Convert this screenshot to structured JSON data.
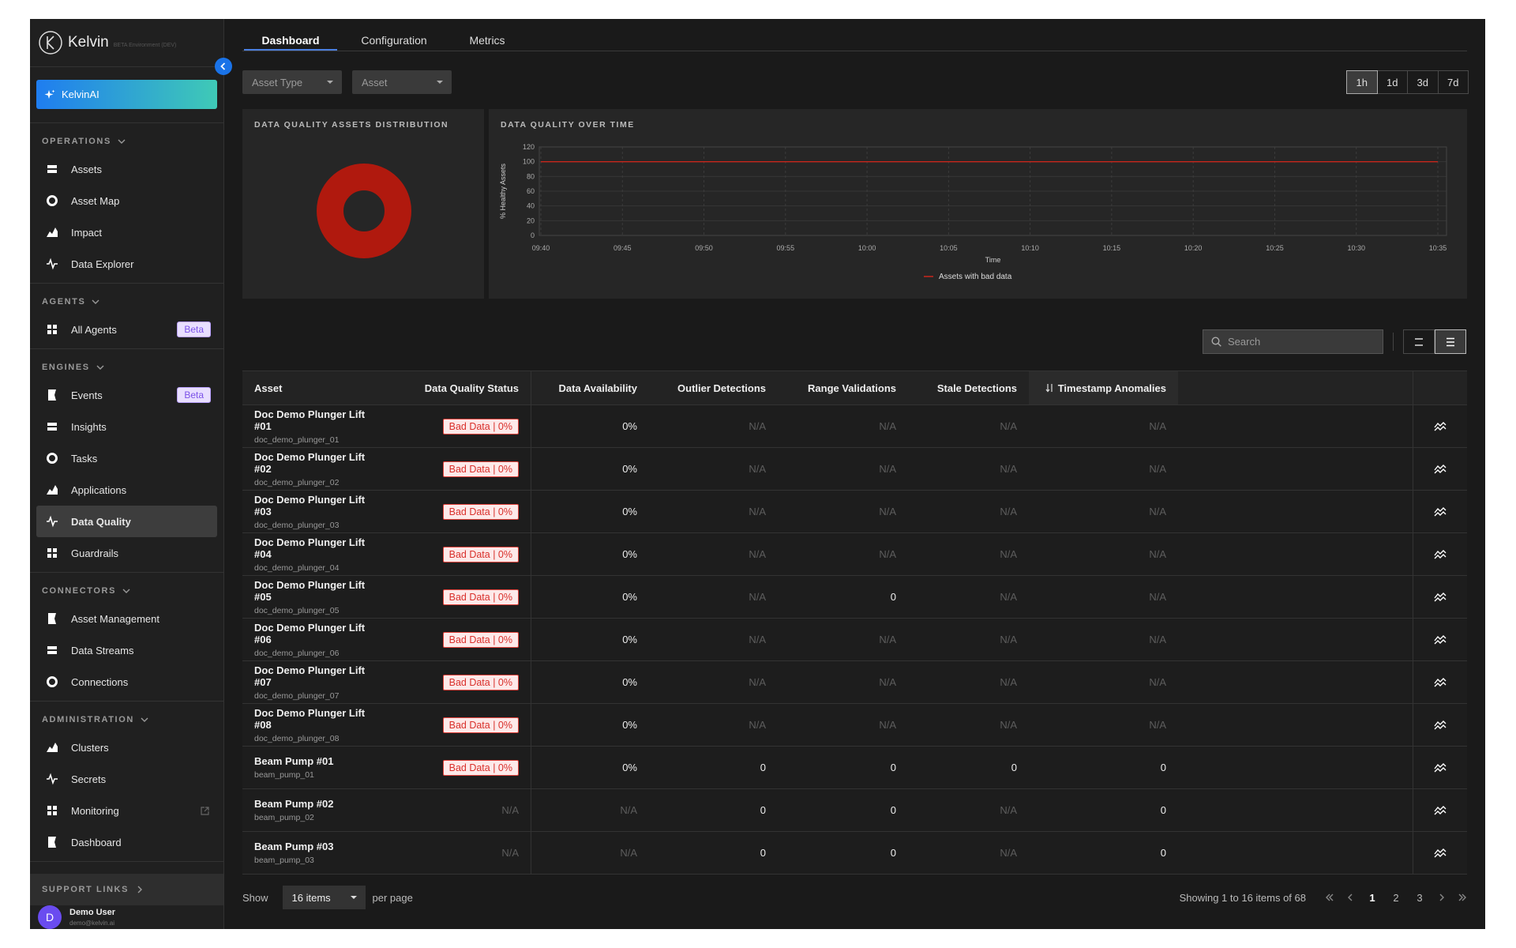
{
  "sidebar": {
    "brand": "Kelvin",
    "environment": "BETA Environment (DEV)",
    "kelvin_ai": "KelvinAI",
    "sections": [
      {
        "title": "OPERATIONS",
        "items": [
          {
            "label": "Assets"
          },
          {
            "label": "Asset Map"
          },
          {
            "label": "Impact"
          },
          {
            "label": "Data Explorer"
          }
        ]
      },
      {
        "title": "AGENTS",
        "items": [
          {
            "label": "All Agents",
            "badge": "Beta"
          }
        ]
      },
      {
        "title": "ENGINES",
        "items": [
          {
            "label": "Events",
            "badge": "Beta"
          },
          {
            "label": "Insights"
          },
          {
            "label": "Tasks"
          },
          {
            "label": "Applications"
          },
          {
            "label": "Data Quality",
            "active": true
          },
          {
            "label": "Guardrails"
          }
        ]
      },
      {
        "title": "CONNECTORS",
        "items": [
          {
            "label": "Asset Management"
          },
          {
            "label": "Data Streams"
          },
          {
            "label": "Connections"
          }
        ]
      },
      {
        "title": "ADMINISTRATION",
        "items": [
          {
            "label": "Clusters"
          },
          {
            "label": "Secrets"
          },
          {
            "label": "Monitoring",
            "external": true
          },
          {
            "label": "Dashboard"
          }
        ]
      }
    ],
    "support_links": "SUPPORT LINKS",
    "user": {
      "initial": "D",
      "name": "Demo User",
      "email": "demo@kelvin.ai"
    }
  },
  "tabs": [
    {
      "label": "Dashboard",
      "active": true
    },
    {
      "label": "Configuration"
    },
    {
      "label": "Metrics"
    }
  ],
  "filters": [
    "Asset Type",
    "Asset"
  ],
  "time_ranges": [
    {
      "label": "1h",
      "active": true
    },
    {
      "label": "1d"
    },
    {
      "label": "3d"
    },
    {
      "label": "7d"
    }
  ],
  "chart_data": [
    {
      "type": "donut",
      "title": "DATA QUALITY ASSETS DISTRIBUTION",
      "values": [
        100
      ],
      "colors": [
        "#b0190e"
      ]
    },
    {
      "type": "line",
      "title": "DATA QUALITY OVER TIME",
      "x_label": "Time",
      "y_label": "% Healthy Assets",
      "categories": [
        "09:40",
        "09:45",
        "09:50",
        "09:55",
        "10:00",
        "10:05",
        "10:10",
        "10:15",
        "10:20",
        "10:25",
        "10:30",
        "10:35"
      ],
      "series": [
        {
          "name": "Assets with bad data",
          "color": "#c8261b",
          "values": [
            100,
            100,
            100,
            100,
            100,
            100,
            100,
            100,
            100,
            100,
            100,
            100
          ]
        }
      ],
      "ylim": [
        0,
        120
      ],
      "yticks": [
        0,
        20,
        40,
        60,
        80,
        100,
        120
      ],
      "grid": true
    }
  ],
  "search_placeholder": "Search",
  "table": {
    "columns": [
      "Asset",
      "Data Quality Status",
      "Data Availability",
      "Outlier Detections",
      "Range Validations",
      "Stale Detections",
      "Timestamp Anomalies"
    ],
    "rows": [
      {
        "name": "Doc Demo Plunger Lift #01",
        "id": "doc_demo_plunger_01",
        "cells": [
          "Bad Data | 0%",
          "0%",
          "N/A",
          "N/A",
          "N/A",
          "N/A"
        ]
      },
      {
        "name": "Doc Demo Plunger Lift #02",
        "id": "doc_demo_plunger_02",
        "cells": [
          "Bad Data | 0%",
          "0%",
          "N/A",
          "N/A",
          "N/A",
          "N/A"
        ]
      },
      {
        "name": "Doc Demo Plunger Lift #03",
        "id": "doc_demo_plunger_03",
        "cells": [
          "Bad Data | 0%",
          "0%",
          "N/A",
          "N/A",
          "N/A",
          "N/A"
        ]
      },
      {
        "name": "Doc Demo Plunger Lift #04",
        "id": "doc_demo_plunger_04",
        "cells": [
          "Bad Data | 0%",
          "0%",
          "N/A",
          "N/A",
          "N/A",
          "N/A"
        ]
      },
      {
        "name": "Doc Demo Plunger Lift #05",
        "id": "doc_demo_plunger_05",
        "cells": [
          "Bad Data | 0%",
          "0%",
          "N/A",
          "0",
          "N/A",
          "N/A"
        ]
      },
      {
        "name": "Doc Demo Plunger Lift #06",
        "id": "doc_demo_plunger_06",
        "cells": [
          "Bad Data | 0%",
          "0%",
          "N/A",
          "N/A",
          "N/A",
          "N/A"
        ]
      },
      {
        "name": "Doc Demo Plunger Lift #07",
        "id": "doc_demo_plunger_07",
        "cells": [
          "Bad Data | 0%",
          "0%",
          "N/A",
          "N/A",
          "N/A",
          "N/A"
        ]
      },
      {
        "name": "Doc Demo Plunger Lift #08",
        "id": "doc_demo_plunger_08",
        "cells": [
          "Bad Data | 0%",
          "0%",
          "N/A",
          "N/A",
          "N/A",
          "N/A"
        ]
      },
      {
        "name": "Beam Pump #01",
        "id": "beam_pump_01",
        "cells": [
          "Bad Data | 0%",
          "0%",
          "0",
          "0",
          "0",
          "0"
        ]
      },
      {
        "name": "Beam Pump #02",
        "id": "beam_pump_02",
        "cells": [
          "N/A",
          "N/A",
          "0",
          "0",
          "N/A",
          "0"
        ]
      },
      {
        "name": "Beam Pump #03",
        "id": "beam_pump_03",
        "cells": [
          "N/A",
          "N/A",
          "0",
          "0",
          "N/A",
          "0"
        ]
      }
    ]
  },
  "pagination": {
    "show": "Show",
    "page_size": "16 items",
    "per_page": "per page",
    "summary": "Showing 1 to 16 items of 68",
    "pages": [
      {
        "label": 1,
        "active": true
      },
      {
        "label": 2
      },
      {
        "label": 3
      }
    ]
  }
}
